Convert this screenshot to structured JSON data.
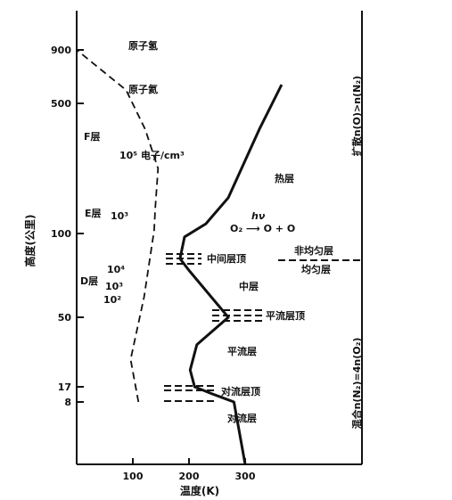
{
  "chart_data": {
    "type": "line",
    "title": "",
    "xlabel": "温度(K)",
    "ylabel": "高度(公里)",
    "x_ticks": [
      100,
      200,
      300
    ],
    "y_ticks": [
      "8",
      "17",
      "50",
      "100",
      "500",
      "900"
    ],
    "xlim": [
      0,
      500
    ],
    "series": [
      {
        "name": "",
        "style": "solid",
        "unit": "K",
        "points": [
          {
            "x": 300,
            "y": 0
          },
          {
            "x": 280,
            "y": 8
          },
          {
            "x": 240,
            "y": 13
          },
          {
            "x": 210,
            "y": 17
          },
          {
            "x": 202,
            "y": 25
          },
          {
            "x": 214,
            "y": 37
          },
          {
            "x": 270,
            "y": 50
          },
          {
            "x": 200,
            "y": 78
          },
          {
            "x": 184,
            "y": 85
          },
          {
            "x": 192,
            "y": 98
          },
          {
            "x": 230,
            "y": 130
          },
          {
            "x": 270,
            "y": 210
          },
          {
            "x": 325,
            "y": 420
          },
          {
            "x": 365,
            "y": 640
          }
        ]
      },
      {
        "name": "",
        "style": "dashed",
        "unit": "电子/cm³",
        "points": [
          {
            "x": 110,
            "y": 8
          },
          {
            "x": 96,
            "y": 30
          },
          {
            "x": 120,
            "y": 62
          },
          {
            "x": 138,
            "y": 110
          },
          {
            "x": 140,
            "y": 180
          },
          {
            "x": 145,
            "y": 300
          },
          {
            "x": 122,
            "y": 420
          },
          {
            "x": 88,
            "y": 600
          },
          {
            "x": 0,
            "y": 900
          }
        ]
      }
    ],
    "density_labels": [
      "10⁵ 电子/cm³",
      "10³",
      "10⁴",
      "10³",
      "10²"
    ],
    "region_labels": {
      "hydrogen": "原子氢",
      "helium": "原子氦",
      "f_layer": "F层",
      "e_layer": "E层",
      "d_layer": "D层",
      "thermosphere": "热层",
      "mesopause": "中间层顶",
      "mesosphere": "中层",
      "stratopause": "平流层顶",
      "stratosphere": "平流层",
      "tropopause": "对流层顶",
      "troposphere": "对流层",
      "heterosphere": "非均匀层",
      "homosphere": "均匀层",
      "photodissociation": "O₂ ⟶ O + O",
      "photon": "hν",
      "diffusion": "扩散n(O)>n(N₂)",
      "mixing": "混合n(N₂)=4n(O₂)"
    }
  }
}
